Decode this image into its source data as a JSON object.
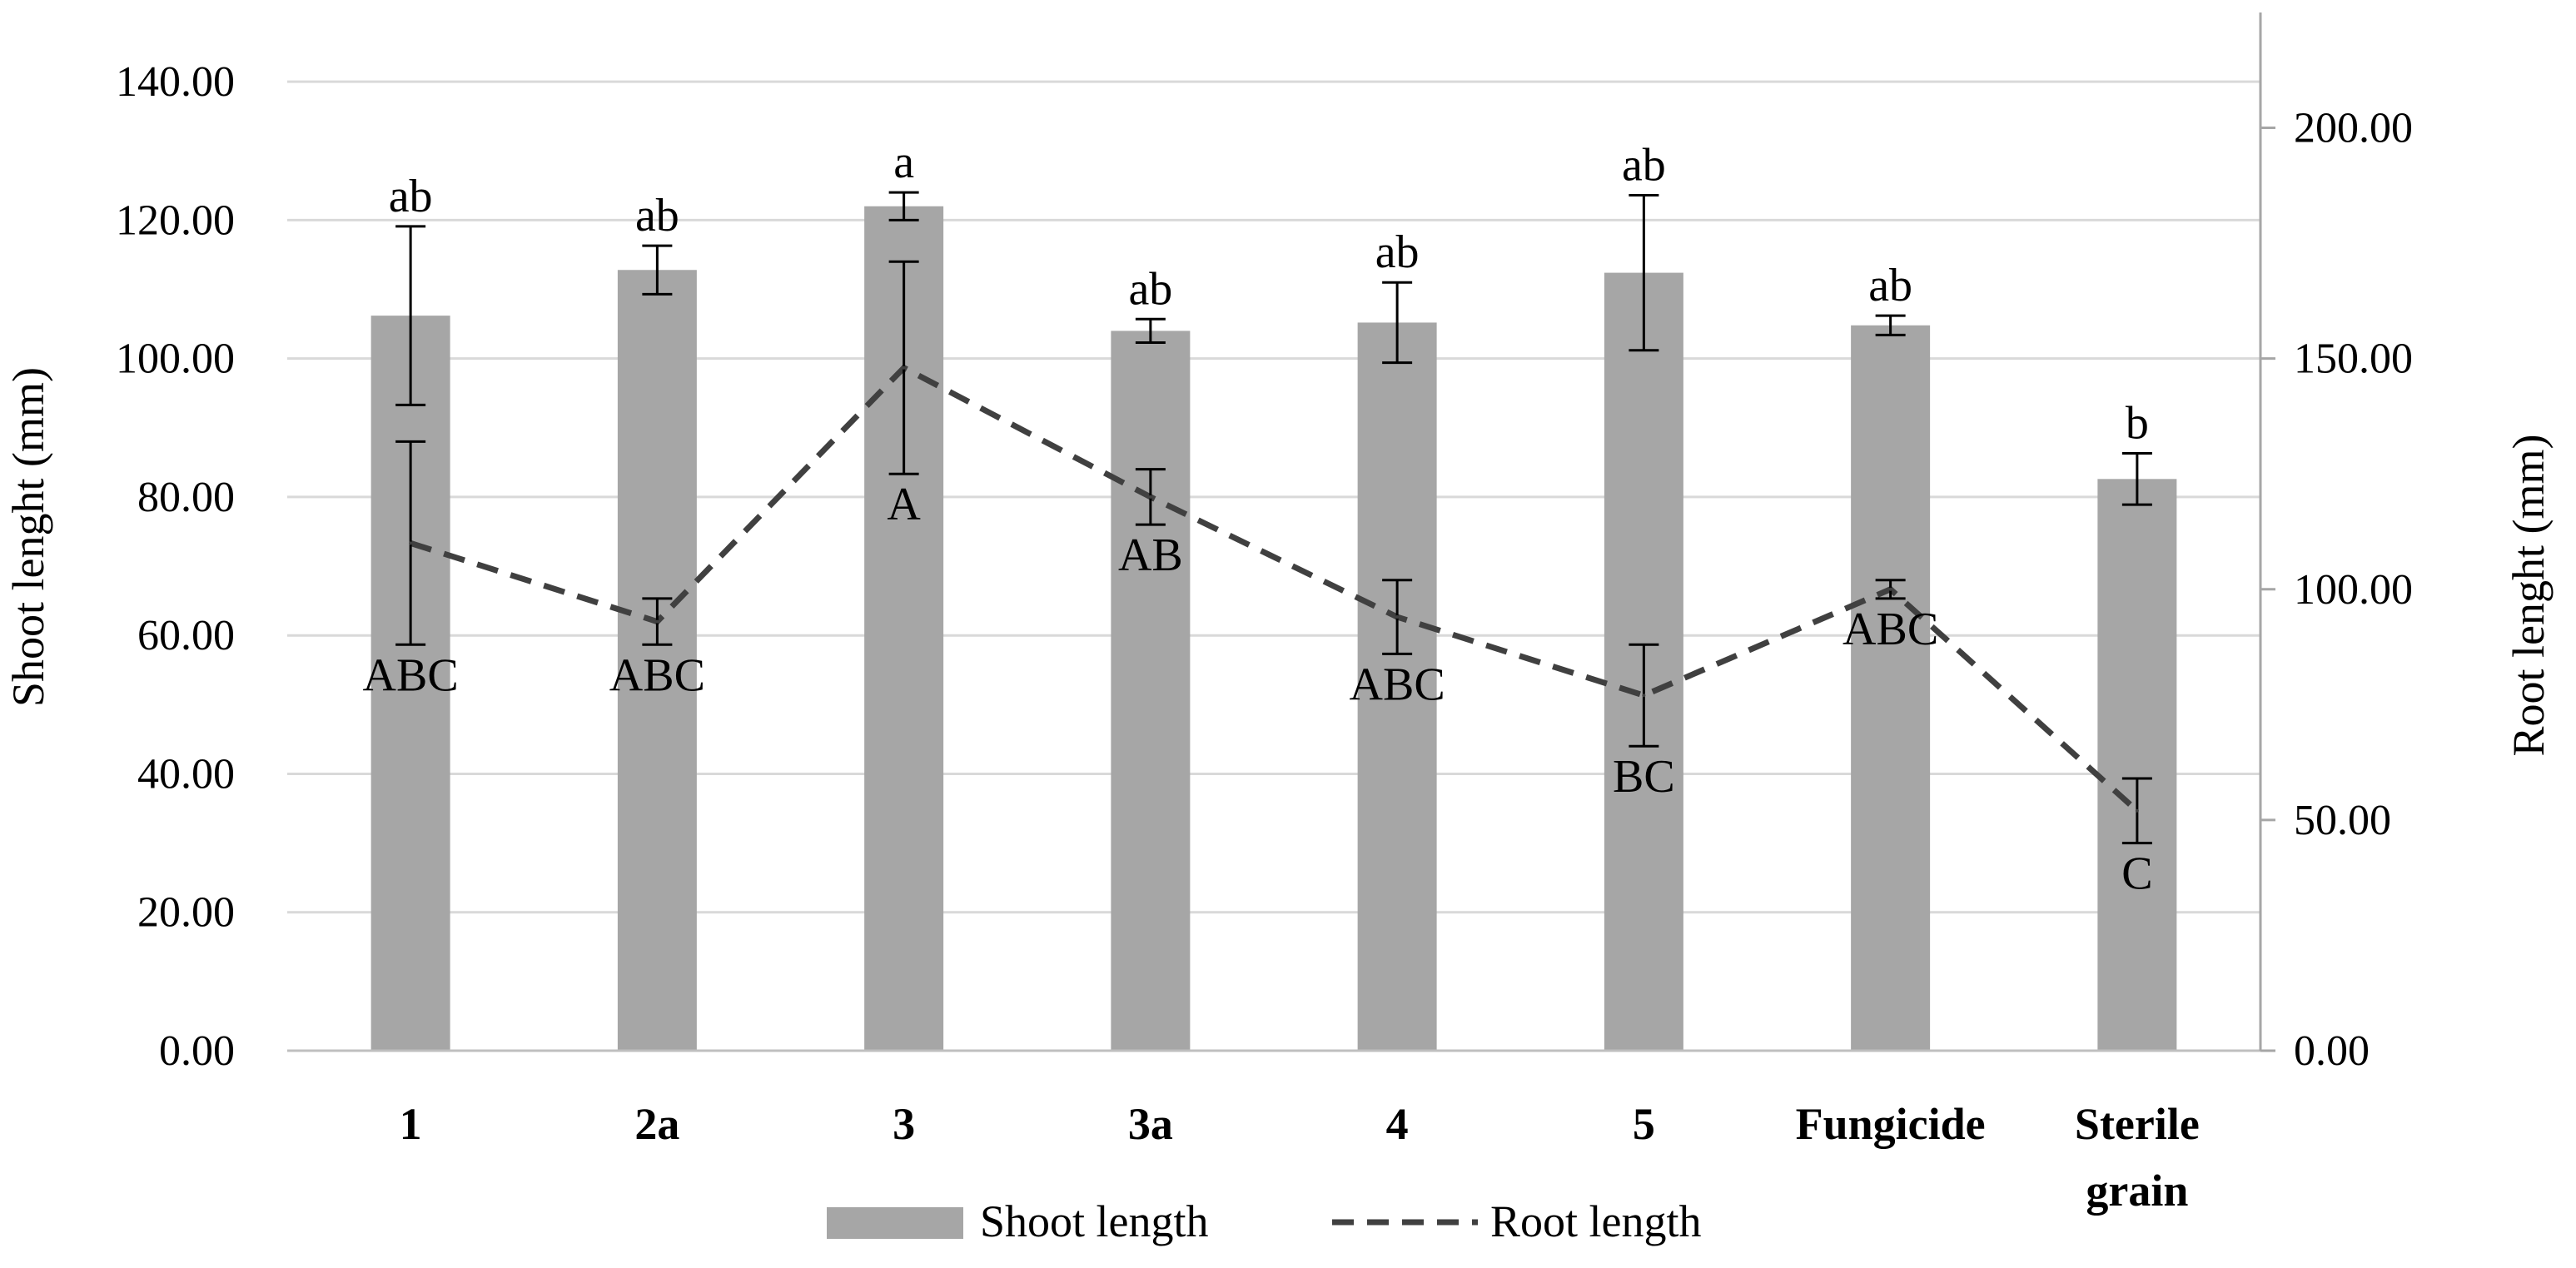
{
  "chart_data": {
    "type": "bar",
    "title": "",
    "categories": [
      "1",
      "2a",
      "3",
      "3a",
      "4",
      "5",
      "Fungicide",
      "Sterile grain"
    ],
    "series": [
      {
        "name": "Shoot length",
        "type": "bar",
        "axis": "left",
        "color": "#a6a6a6",
        "values": [
          106.2,
          112.8,
          122.0,
          104.0,
          105.2,
          112.4,
          104.8,
          82.6
        ],
        "errors": [
          12.9,
          3.5,
          2.0,
          1.7,
          5.8,
          11.2,
          1.4,
          3.7
        ],
        "letters": [
          "ab",
          "ab",
          "a",
          "ab",
          "ab",
          "ab",
          "ab",
          "b"
        ]
      },
      {
        "name": "Root length",
        "type": "line",
        "style": "dashed",
        "axis": "right",
        "color": "#404040",
        "values": [
          110.0,
          93.0,
          148.0,
          120.0,
          94.0,
          77.0,
          100.0,
          52.0
        ],
        "errors": [
          22.0,
          5.0,
          23.0,
          6.0,
          8.0,
          11.0,
          2.0,
          7.0
        ],
        "letters": [
          "ABC",
          "ABC",
          "A",
          "AB",
          "ABC",
          "BC",
          "ABC",
          "C"
        ]
      }
    ],
    "y_left": {
      "label": "Shoot lenght (mm)",
      "ylim": [
        0,
        150
      ],
      "ticks": [
        0,
        20,
        40,
        60,
        80,
        100,
        120,
        140
      ],
      "tick_labels": [
        "0.00",
        "20.00",
        "40.00",
        "60.00",
        "80.00",
        "100.00",
        "120.00",
        "140.00"
      ]
    },
    "y_right": {
      "label": "Root lenght (mm)",
      "ylim": [
        0,
        225
      ],
      "ticks": [
        0,
        50,
        100,
        150,
        200
      ],
      "tick_labels": [
        "0.00",
        "50.00",
        "100.00",
        "150.00",
        "200.00"
      ]
    },
    "grid": true,
    "legend": {
      "position": "bottom",
      "entries": [
        "Shoot length",
        "Root length"
      ]
    }
  }
}
